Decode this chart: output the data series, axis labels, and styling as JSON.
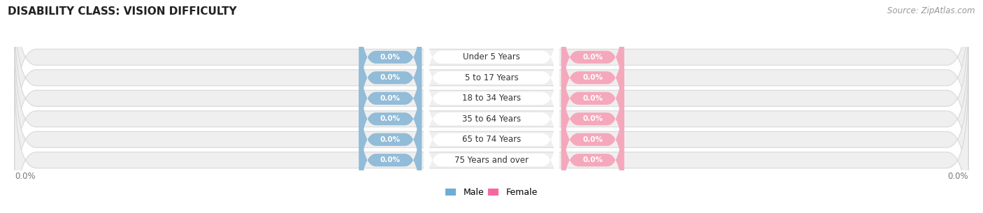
{
  "title": "DISABILITY CLASS: VISION DIFFICULTY",
  "source": "Source: ZipAtlas.com",
  "categories": [
    "Under 5 Years",
    "5 to 17 Years",
    "18 to 34 Years",
    "35 to 64 Years",
    "65 to 74 Years",
    "75 Years and over"
  ],
  "male_values": [
    0.0,
    0.0,
    0.0,
    0.0,
    0.0,
    0.0
  ],
  "female_values": [
    0.0,
    0.0,
    0.0,
    0.0,
    0.0,
    0.0
  ],
  "male_color": "#92bcd8",
  "female_color": "#f5a8bc",
  "row_bg_color": "#efefef",
  "row_border_color": "#d8d8d8",
  "figsize": [
    14.06,
    3.05
  ],
  "dpi": 100,
  "legend_male_color": "#6baed6",
  "legend_female_color": "#f768a1",
  "center_label_bg": "#ffffff",
  "bottom_label_color": "#777777",
  "title_color": "#222222",
  "source_color": "#999999"
}
